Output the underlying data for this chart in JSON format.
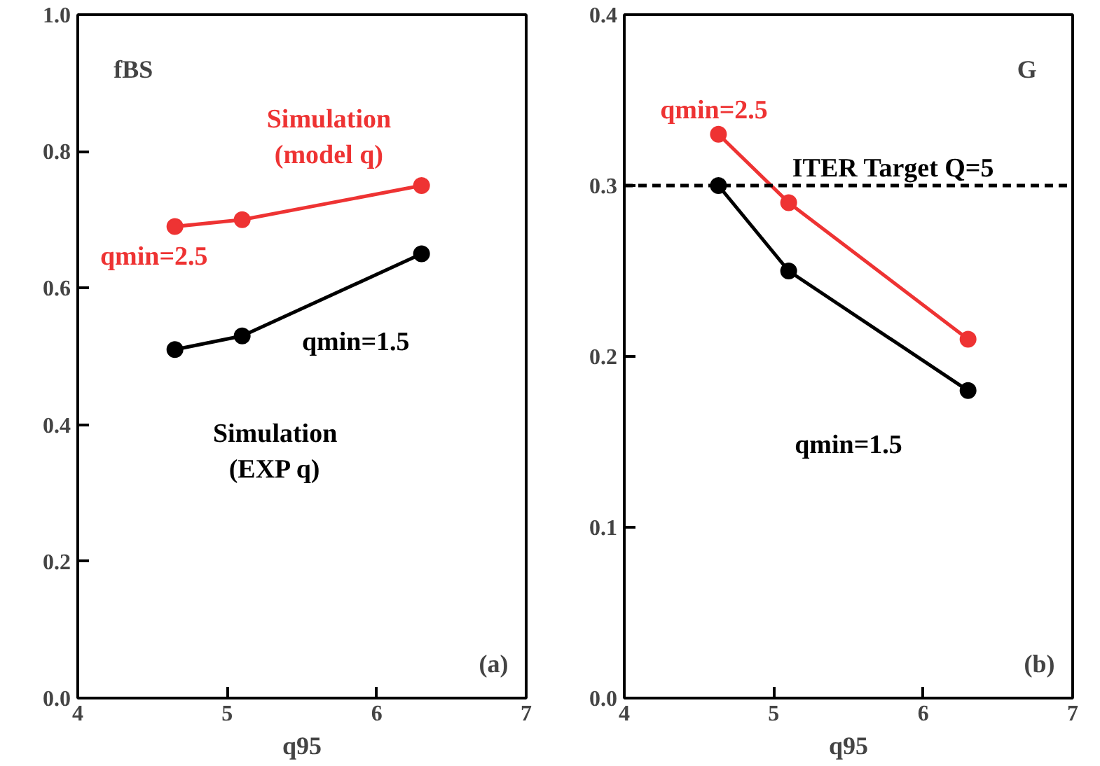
{
  "chart_data": [
    {
      "type": "line",
      "ylabel": "fBS",
      "xlabel": "q95",
      "marker": "circle",
      "line_style": "solid",
      "grid": false,
      "xlim": [
        4,
        7
      ],
      "xticks": [
        4,
        5,
        6,
        7
      ],
      "ylim": [
        0,
        1
      ],
      "yticks": [
        {
          "value": 0,
          "label": "0.0"
        },
        {
          "value": 0.2,
          "label": "0.2"
        },
        {
          "value": 0.4,
          "label": "0.4"
        },
        {
          "value": 0.6,
          "label": "0.6"
        },
        {
          "value": 0.8,
          "label": "0.8"
        },
        {
          "value": 1,
          "label": "1.0"
        }
      ],
      "series": [
        {
          "name": "qmin=2.5",
          "color": "#ee3333",
          "x": [
            4.65,
            5.1,
            6.3
          ],
          "values": [
            0.69,
            0.7,
            0.75
          ]
        },
        {
          "name": "qmin=1.5",
          "color": "#000000",
          "x": [
            4.65,
            5.1,
            6.3
          ],
          "values": [
            0.51,
            0.53,
            0.65
          ]
        }
      ],
      "annotations": [
        "Simulation\n(model q)",
        "Simulation\n(EXP q)",
        "(a)"
      ]
    },
    {
      "type": "line",
      "ylabel": "G",
      "xlabel": "q95",
      "marker": "circle",
      "line_style": "solid",
      "grid": false,
      "xlim": [
        4,
        7
      ],
      "xticks": [
        4,
        5,
        6,
        7
      ],
      "ylim": [
        0,
        0.4
      ],
      "yticks": [
        {
          "value": 0,
          "label": "0.0"
        },
        0.1,
        0.2,
        0.3,
        0.4
      ],
      "series": [
        {
          "name": "qmin=2.5",
          "color": "#ee3333",
          "x": [
            4.63,
            5.1,
            6.3
          ],
          "values": [
            0.33,
            0.29,
            0.21
          ]
        },
        {
          "name": "qmin=1.5",
          "color": "#000000",
          "x": [
            4.63,
            5.1,
            6.3
          ],
          "values": [
            0.3,
            0.25,
            0.18
          ]
        }
      ],
      "ref_lines": [
        {
          "axis": "y",
          "value": 0.3,
          "color": "#000000",
          "line_style": "dashed"
        }
      ],
      "annotations": [
        "ITER Target Q=5",
        "(b)"
      ]
    }
  ]
}
